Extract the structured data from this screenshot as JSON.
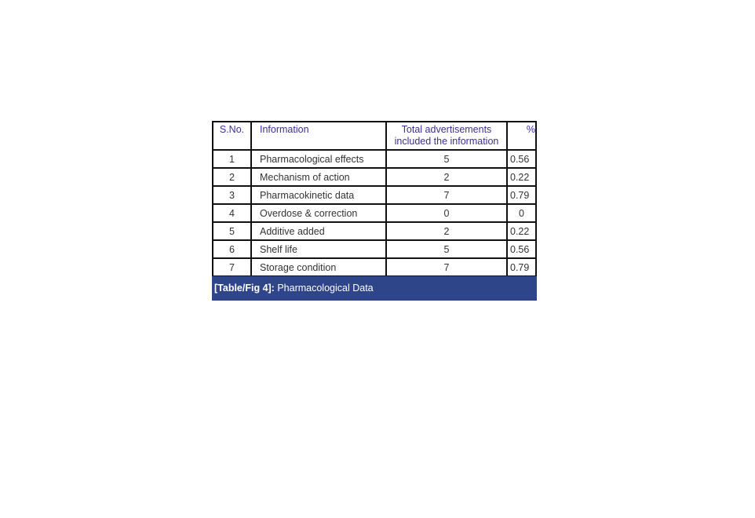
{
  "table": {
    "headers": [
      "S.No.",
      "Information",
      "Total advertisements included the information",
      "%"
    ],
    "rows": [
      [
        "1",
        "Pharmacological effects",
        "5",
        "0.56"
      ],
      [
        "2",
        "Mechanism of action",
        "2",
        "0.22"
      ],
      [
        "3",
        "Pharmacokinetic data",
        "7",
        "0.79"
      ],
      [
        "4",
        "Overdose & correction",
        "0",
        "0"
      ],
      [
        "5",
        "Additive added",
        "2",
        "0.22"
      ],
      [
        "6",
        "Shelf life",
        "5",
        "0.56"
      ],
      [
        "7",
        "Storage condition",
        "7",
        "0.79"
      ]
    ]
  },
  "caption": {
    "label": "[Table/Fig 4]:",
    "text": " Pharmacological Data"
  },
  "colors": {
    "header_text": "#3b3192",
    "caption_bg": "#2f4589"
  }
}
